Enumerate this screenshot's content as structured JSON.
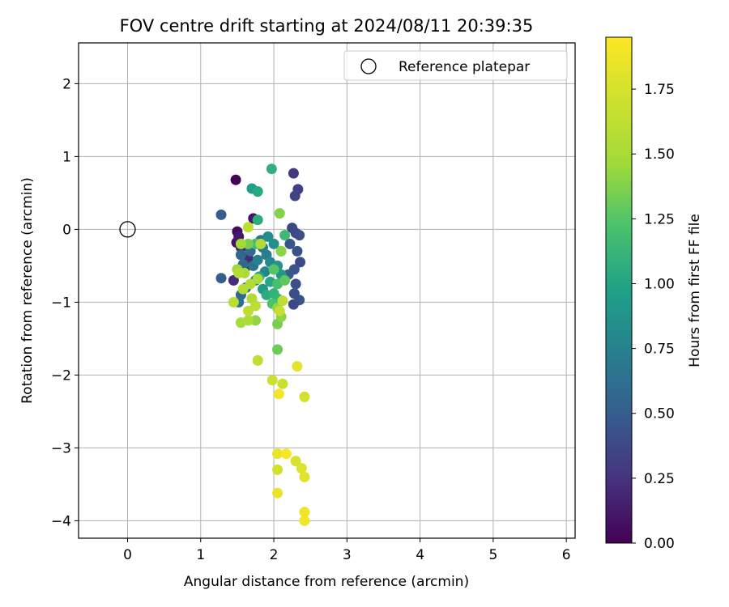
{
  "chart_data": {
    "type": "scatter",
    "title": "FOV centre drift starting at 2024/08/11 20:39:35",
    "xlabel": "Angular distance from reference (arcmin)",
    "ylabel": "Rotation from reference (arcmin)",
    "xlim": [
      -0.67,
      6.12
    ],
    "ylim": [
      -4.24,
      2.56
    ],
    "xticks": [
      0,
      1,
      2,
      3,
      4,
      5,
      6
    ],
    "yticks": [
      -4,
      -3,
      -2,
      -1,
      0,
      1,
      2
    ],
    "grid": true,
    "legend": {
      "label": "Reference platepar",
      "placement": "top-right"
    },
    "reference_point": {
      "x": 0,
      "y": 0
    },
    "colorbar": {
      "label": "Hours from first FF file",
      "min": 0.0,
      "max": 1.95,
      "ticks": [
        "0.00",
        "0.25",
        "0.50",
        "0.75",
        "1.00",
        "1.25",
        "1.50",
        "1.75"
      ],
      "colormap": "viridis"
    },
    "points": [
      {
        "x": 1.48,
        "y": 0.68,
        "t": 0.02
      },
      {
        "x": 1.5,
        "y": -0.03,
        "t": 0.05
      },
      {
        "x": 1.49,
        "y": -0.18,
        "t": 0.08
      },
      {
        "x": 1.72,
        "y": 0.15,
        "t": 0.1
      },
      {
        "x": 1.52,
        "y": -0.1,
        "t": 0.12
      },
      {
        "x": 1.6,
        "y": -0.55,
        "t": 0.15
      },
      {
        "x": 1.55,
        "y": -0.25,
        "t": 0.18
      },
      {
        "x": 1.65,
        "y": -0.4,
        "t": 0.2
      },
      {
        "x": 1.45,
        "y": -0.7,
        "t": 0.22
      },
      {
        "x": 2.27,
        "y": 0.77,
        "t": 0.28
      },
      {
        "x": 2.33,
        "y": 0.55,
        "t": 0.32
      },
      {
        "x": 2.29,
        "y": 0.46,
        "t": 0.35
      },
      {
        "x": 2.25,
        "y": 0.02,
        "t": 0.35
      },
      {
        "x": 2.3,
        "y": -0.05,
        "t": 0.38
      },
      {
        "x": 2.35,
        "y": -0.08,
        "t": 0.4
      },
      {
        "x": 2.32,
        "y": -0.3,
        "t": 0.42
      },
      {
        "x": 2.36,
        "y": -0.45,
        "t": 0.38
      },
      {
        "x": 2.28,
        "y": -0.55,
        "t": 0.45
      },
      {
        "x": 2.3,
        "y": -0.75,
        "t": 0.42
      },
      {
        "x": 2.28,
        "y": -0.88,
        "t": 0.4
      },
      {
        "x": 2.35,
        "y": -0.97,
        "t": 0.42
      },
      {
        "x": 2.27,
        "y": -1.03,
        "t": 0.38
      },
      {
        "x": 2.22,
        "y": -0.2,
        "t": 0.45
      },
      {
        "x": 2.2,
        "y": -0.62,
        "t": 0.48
      },
      {
        "x": 1.28,
        "y": 0.2,
        "t": 0.5
      },
      {
        "x": 1.28,
        "y": -0.67,
        "t": 0.5
      },
      {
        "x": 1.55,
        "y": -0.35,
        "t": 0.55
      },
      {
        "x": 1.58,
        "y": -0.48,
        "t": 0.58
      },
      {
        "x": 1.62,
        "y": -0.8,
        "t": 0.6
      },
      {
        "x": 1.55,
        "y": -0.9,
        "t": 0.58
      },
      {
        "x": 1.52,
        "y": -1.0,
        "t": 0.62
      },
      {
        "x": 1.68,
        "y": -0.3,
        "t": 0.6
      },
      {
        "x": 1.72,
        "y": -0.5,
        "t": 0.65
      },
      {
        "x": 1.75,
        "y": -0.7,
        "t": 0.68
      },
      {
        "x": 1.82,
        "y": -0.15,
        "t": 0.65
      },
      {
        "x": 1.85,
        "y": -0.25,
        "t": 0.7
      },
      {
        "x": 1.9,
        "y": -0.35,
        "t": 0.72
      },
      {
        "x": 1.78,
        "y": -0.42,
        "t": 0.75
      },
      {
        "x": 1.88,
        "y": -0.58,
        "t": 0.78
      },
      {
        "x": 1.95,
        "y": -0.45,
        "t": 0.8
      },
      {
        "x": 1.92,
        "y": -0.1,
        "t": 0.82
      },
      {
        "x": 2.0,
        "y": -0.2,
        "t": 0.85
      },
      {
        "x": 2.05,
        "y": -0.5,
        "t": 0.88
      },
      {
        "x": 2.1,
        "y": -0.62,
        "t": 0.9
      },
      {
        "x": 1.85,
        "y": -0.82,
        "t": 0.92
      },
      {
        "x": 1.7,
        "y": 0.56,
        "t": 0.95
      },
      {
        "x": 1.78,
        "y": 0.52,
        "t": 1.02
      },
      {
        "x": 1.97,
        "y": 0.83,
        "t": 1.08
      },
      {
        "x": 1.78,
        "y": 0.13,
        "t": 1.05
      },
      {
        "x": 1.8,
        "y": -0.65,
        "t": 1.0
      },
      {
        "x": 1.95,
        "y": -0.72,
        "t": 1.02
      },
      {
        "x": 1.9,
        "y": -0.9,
        "t": 1.05
      },
      {
        "x": 2.0,
        "y": -0.88,
        "t": 1.1
      },
      {
        "x": 2.05,
        "y": -0.95,
        "t": 1.12
      },
      {
        "x": 2.1,
        "y": -0.3,
        "t": 1.12
      },
      {
        "x": 2.15,
        "y": -0.08,
        "t": 1.15
      },
      {
        "x": 1.75,
        "y": -0.2,
        "t": 1.18
      },
      {
        "x": 2.05,
        "y": -0.75,
        "t": 1.2
      },
      {
        "x": 1.98,
        "y": -1.02,
        "t": 1.22
      },
      {
        "x": 2.0,
        "y": -0.55,
        "t": 1.25
      },
      {
        "x": 2.15,
        "y": -0.7,
        "t": 1.28
      },
      {
        "x": 2.05,
        "y": -1.65,
        "t": 1.32
      },
      {
        "x": 2.05,
        "y": -1.3,
        "t": 1.35
      },
      {
        "x": 1.65,
        "y": -0.2,
        "t": 1.35
      },
      {
        "x": 2.08,
        "y": 0.22,
        "t": 1.38
      },
      {
        "x": 2.1,
        "y": -0.3,
        "t": 1.4
      },
      {
        "x": 2.1,
        "y": -1.2,
        "t": 1.4
      },
      {
        "x": 2.05,
        "y": -1.08,
        "t": 1.42
      },
      {
        "x": 1.75,
        "y": -1.25,
        "t": 1.42
      },
      {
        "x": 1.5,
        "y": -0.55,
        "t": 1.45
      },
      {
        "x": 1.55,
        "y": -0.2,
        "t": 1.48
      },
      {
        "x": 1.6,
        "y": -0.6,
        "t": 1.5
      },
      {
        "x": 1.55,
        "y": -1.28,
        "t": 1.5
      },
      {
        "x": 1.65,
        "y": -1.25,
        "t": 1.52
      },
      {
        "x": 1.7,
        "y": -0.95,
        "t": 1.55
      },
      {
        "x": 1.78,
        "y": -0.68,
        "t": 1.52
      },
      {
        "x": 1.68,
        "y": -0.75,
        "t": 1.55
      },
      {
        "x": 1.82,
        "y": -0.2,
        "t": 1.55
      },
      {
        "x": 1.58,
        "y": -0.82,
        "t": 1.58
      },
      {
        "x": 1.52,
        "y": -0.6,
        "t": 1.58
      },
      {
        "x": 1.65,
        "y": 0.03,
        "t": 1.6
      },
      {
        "x": 1.45,
        "y": -1.0,
        "t": 1.6
      },
      {
        "x": 1.75,
        "y": -1.05,
        "t": 1.6
      },
      {
        "x": 1.65,
        "y": -1.12,
        "t": 1.62
      },
      {
        "x": 1.78,
        "y": -1.8,
        "t": 1.62
      },
      {
        "x": 2.08,
        "y": -1.12,
        "t": 1.65
      },
      {
        "x": 2.12,
        "y": -0.98,
        "t": 1.62
      },
      {
        "x": 2.12,
        "y": -2.12,
        "t": 1.68
      },
      {
        "x": 1.98,
        "y": -2.07,
        "t": 1.7
      },
      {
        "x": 2.42,
        "y": -2.3,
        "t": 1.72
      },
      {
        "x": 2.05,
        "y": -3.3,
        "t": 1.72
      },
      {
        "x": 2.3,
        "y": -3.18,
        "t": 1.75
      },
      {
        "x": 2.38,
        "y": -3.28,
        "t": 1.78
      },
      {
        "x": 2.42,
        "y": -3.4,
        "t": 1.8
      },
      {
        "x": 2.32,
        "y": -1.88,
        "t": 1.82
      },
      {
        "x": 2.05,
        "y": -3.08,
        "t": 1.85
      },
      {
        "x": 2.05,
        "y": -3.62,
        "t": 1.85
      },
      {
        "x": 2.42,
        "y": -3.88,
        "t": 1.87
      },
      {
        "x": 2.42,
        "y": -4.0,
        "t": 1.88
      },
      {
        "x": 2.07,
        "y": -2.26,
        "t": 1.9
      },
      {
        "x": 2.17,
        "y": -3.08,
        "t": 1.93
      }
    ]
  }
}
